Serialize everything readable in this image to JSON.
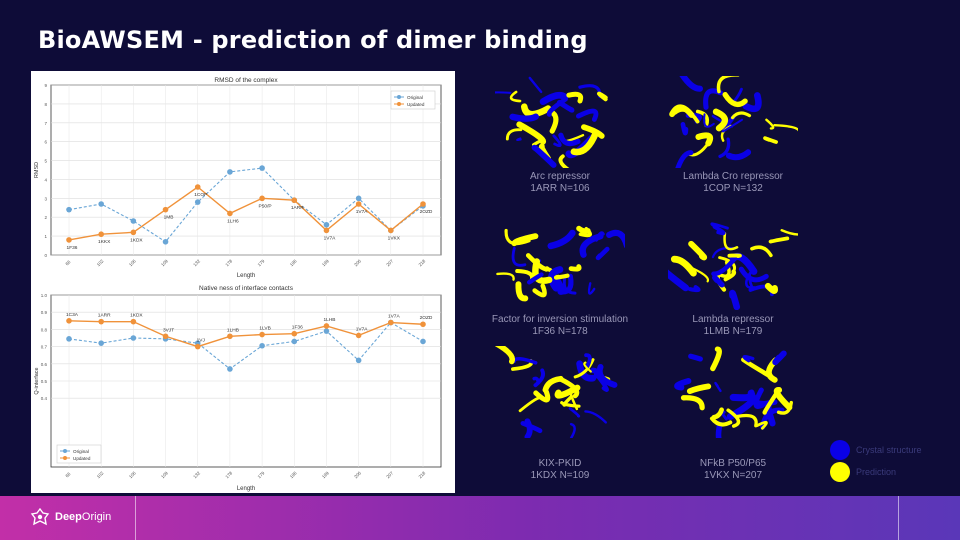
{
  "slide": {
    "title": "BioAWSEM -  prediction of dimer binding"
  },
  "chart_data": [
    {
      "type": "line",
      "title": "RMSD of the complex",
      "xlabel": "Length",
      "ylabel": "RMSD",
      "ylim": [
        0,
        9
      ],
      "yticks": [
        "0",
        "1",
        "2",
        "3",
        "4",
        "5",
        "6",
        "7",
        "8",
        "9"
      ],
      "categories": [
        "66",
        "102",
        "106",
        "109",
        "132",
        "178",
        "179",
        "196",
        "199",
        "206",
        "207",
        "218"
      ],
      "point_labels": [
        "1F36",
        "1KKX",
        "1KDX",
        "1MB",
        "1COP",
        "1LH6",
        "P50/P",
        "1ARR",
        "1V7A",
        "1V7A",
        "1VKX",
        "2OZD"
      ],
      "series": [
        {
          "name": "Original",
          "color": "#6aa6d6",
          "values": [
            2.4,
            2.7,
            1.8,
            0.7,
            2.8,
            4.4,
            4.6,
            2.9,
            1.6,
            3.0,
            1.3,
            2.6
          ]
        },
        {
          "name": "Updated",
          "color": "#f0923a",
          "values": [
            0.8,
            1.1,
            1.2,
            2.4,
            3.6,
            2.2,
            3.0,
            2.9,
            1.3,
            2.7,
            1.3,
            2.7
          ]
        }
      ],
      "legend": "top-right",
      "grid": true
    },
    {
      "type": "line",
      "title": "Native ness of interface contacts",
      "xlabel": "Length",
      "ylabel": "Q-interface",
      "ylim": [
        0,
        1
      ],
      "yticks": [
        "1.0",
        "0.9",
        "0.8",
        "0.7",
        "0.6",
        "0.5",
        "0.4"
      ],
      "categories": [
        "66",
        "102",
        "106",
        "109",
        "132",
        "178",
        "179",
        "196",
        "199",
        "206",
        "207",
        "218"
      ],
      "point_labels": [
        "1C3A",
        "1ARR",
        "1KDX",
        "3VJT",
        "1VJ",
        "1LHB",
        "1LVB",
        "1F36",
        "1LHB",
        "1V7A",
        "1V7A",
        "2OZD"
      ],
      "series": [
        {
          "name": "Original",
          "color": "#6aa6d6",
          "values": [
            0.745,
            0.72,
            0.75,
            0.745,
            0.72,
            0.57,
            0.705,
            0.73,
            0.79,
            0.62,
            0.84,
            0.73
          ]
        },
        {
          "name": "Updated",
          "color": "#f0923a",
          "values": [
            0.85,
            0.845,
            0.845,
            0.76,
            0.7,
            0.76,
            0.77,
            0.775,
            0.82,
            0.765,
            0.84,
            0.83
          ]
        }
      ],
      "legend": "bottom-left",
      "grid": true
    }
  ],
  "proteins": [
    {
      "name": "Arc repressor",
      "id": "1ARR N=106"
    },
    {
      "name": "Lambda Cro repressor",
      "id": "1COP N=132"
    },
    {
      "name": "Factor for inversion stimulation",
      "id": "1F36 N=178"
    },
    {
      "name": "Lambda repressor",
      "id": "1LMB N=179"
    },
    {
      "name": "KIX-PKID",
      "id": "1KDX N=109"
    },
    {
      "name": "NFkB P50/P65",
      "id": "1VKX N=207"
    }
  ],
  "structure_legend": [
    {
      "label": "Crystal structure",
      "color": "#0a00e6"
    },
    {
      "label": "Prediction",
      "color": "#ffff00"
    }
  ],
  "footer": {
    "logo_bold": "Deep",
    "logo_light": "Origin"
  },
  "icons": {
    "logo": "deep-origin-logo-icon"
  }
}
